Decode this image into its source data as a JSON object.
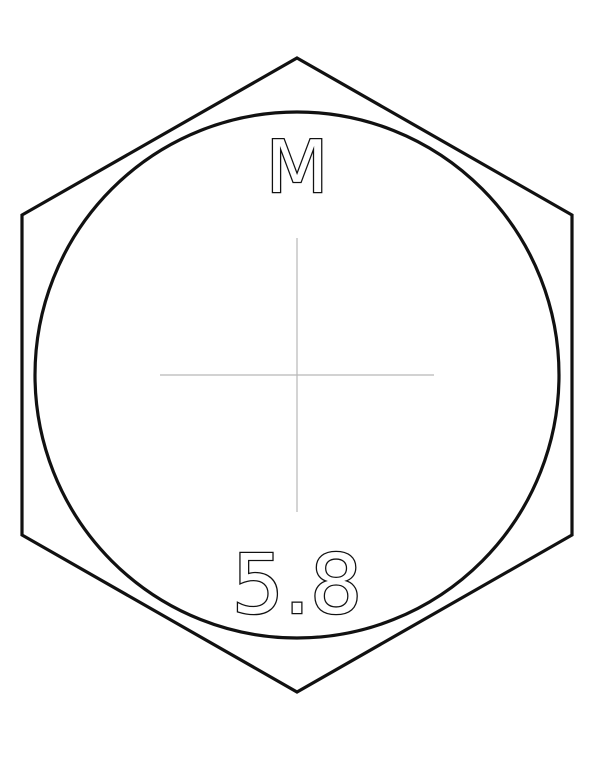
{
  "head_marking": {
    "manufacturer_mark": "M",
    "property_class": "5.8"
  },
  "colors": {
    "outline": "#111111",
    "centerline": "#b8b8b8",
    "background": "#ffffff"
  }
}
